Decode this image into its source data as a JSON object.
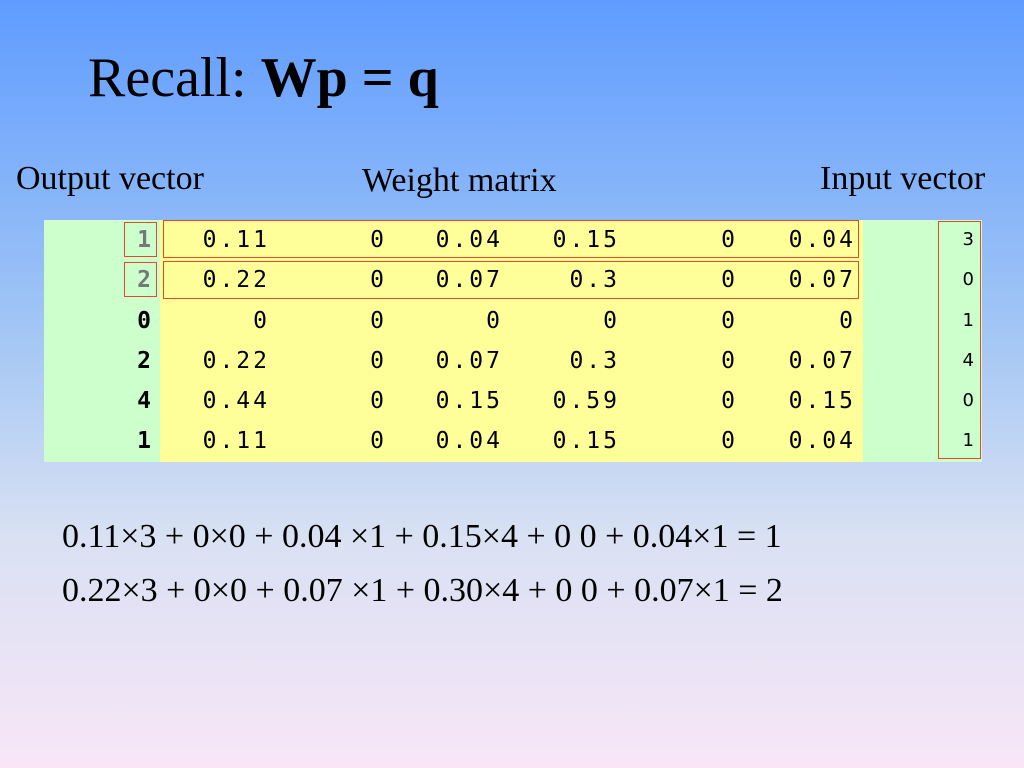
{
  "title": {
    "prefix": "Recall: ",
    "formula": "Wp = q"
  },
  "labels": {
    "output": "Output vector",
    "weight": "Weight matrix",
    "input": "Input vector"
  },
  "output_vector": [
    "1",
    "2",
    "0",
    "2",
    "4",
    "1"
  ],
  "weight_matrix": [
    [
      "0.11",
      "0",
      "0.04",
      "0.15",
      "0",
      "0.04"
    ],
    [
      "0.22",
      "0",
      "0.07",
      "0.3",
      "0",
      "0.07"
    ],
    [
      "0",
      "0",
      "0",
      "0",
      "0",
      "0"
    ],
    [
      "0.22",
      "0",
      "0.07",
      "0.3",
      "0",
      "0.07"
    ],
    [
      "0.44",
      "0",
      "0.15",
      "0.59",
      "0",
      "0.15"
    ],
    [
      "0.11",
      "0",
      "0.04",
      "0.15",
      "0",
      "0.04"
    ]
  ],
  "input_vector": [
    "3",
    "0",
    "1",
    "4",
    "0",
    "1"
  ],
  "equations": [
    "0.11×3 + 0×0 + 0.04 ×1 + 0.15×4 + 0 0 + 0.04×1 = 1",
    "0.22×3 + 0×0 + 0.07 ×1 + 0.30×4 + 0 0 + 0.07×1 = 2"
  ],
  "colors": {
    "matrix_fill": "#ffff99",
    "vector_fill": "#ccffcc",
    "highlight_border": "#e24a2b"
  }
}
